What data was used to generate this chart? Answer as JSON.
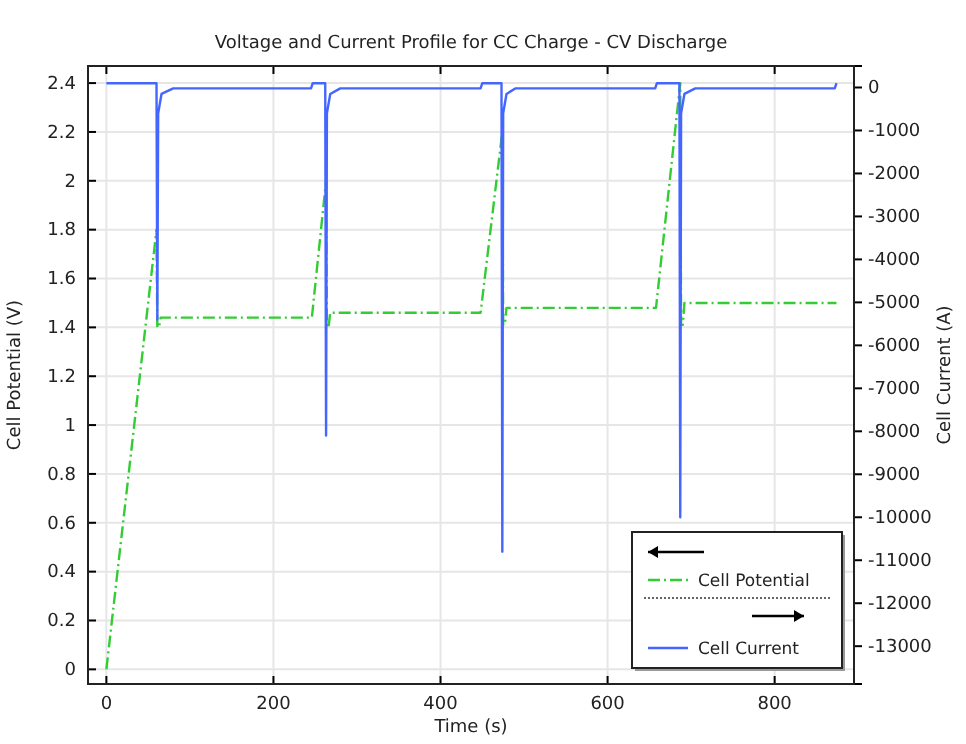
{
  "chart_data": {
    "type": "line",
    "title": "Voltage and Current Profile for CC Charge - CV Discharge",
    "xlabel": "Time (s)",
    "ylabel": "Cell Potential (V)",
    "y2label": "Cell Current (A)",
    "xlim": [
      -22,
      895
    ],
    "xticks": [
      0,
      200,
      400,
      600,
      800
    ],
    "ylim": [
      -0.06,
      2.47
    ],
    "yticks": [
      0,
      0.2,
      0.4,
      0.6,
      0.8,
      1,
      1.2,
      1.4,
      1.6,
      1.8,
      2,
      2.2,
      2.4
    ],
    "y2lim": [
      -13880,
      500
    ],
    "y2ticks": [
      0,
      -1000,
      -2000,
      -3000,
      -4000,
      -5000,
      -6000,
      -7000,
      -8000,
      -9000,
      -10000,
      -11000,
      -12000,
      -13000
    ],
    "grid": true,
    "legend": "bottom right",
    "series": [
      {
        "name": "Cell Potential",
        "color": "#33cc33",
        "line_style": "dashed",
        "x": [
          0,
          60,
          61,
          63,
          65,
          246,
          263,
          264,
          266,
          268,
          448,
          474,
          475,
          477,
          479,
          658,
          687,
          688,
          690,
          692,
          874
        ],
        "values": [
          0,
          1.8,
          1.4,
          1.4,
          1.44,
          1.44,
          2.0,
          1.4,
          1.4,
          1.46,
          1.46,
          2.2,
          1.41,
          1.41,
          1.48,
          1.48,
          2.4,
          1.41,
          1.41,
          1.5,
          1.5
        ]
      },
      {
        "name": "Cell Current",
        "color": "#4466ff",
        "line_style": "solid",
        "axis": "y2",
        "x": [
          0,
          60,
          61,
          62,
          66,
          80,
          245,
          247,
          262,
          263,
          264,
          268,
          280,
          448,
          450,
          473,
          474,
          475,
          479,
          490,
          657,
          659,
          686,
          687,
          688,
          692,
          705,
          872,
          874
        ],
        "values": [
          100,
          100,
          -5400,
          -600,
          -150,
          -20,
          -20,
          100,
          100,
          -8100,
          -600,
          -150,
          -20,
          -20,
          100,
          100,
          -10800,
          -600,
          -150,
          -20,
          -20,
          100,
          100,
          -10000,
          -600,
          -150,
          -20,
          -20,
          100
        ]
      }
    ]
  }
}
